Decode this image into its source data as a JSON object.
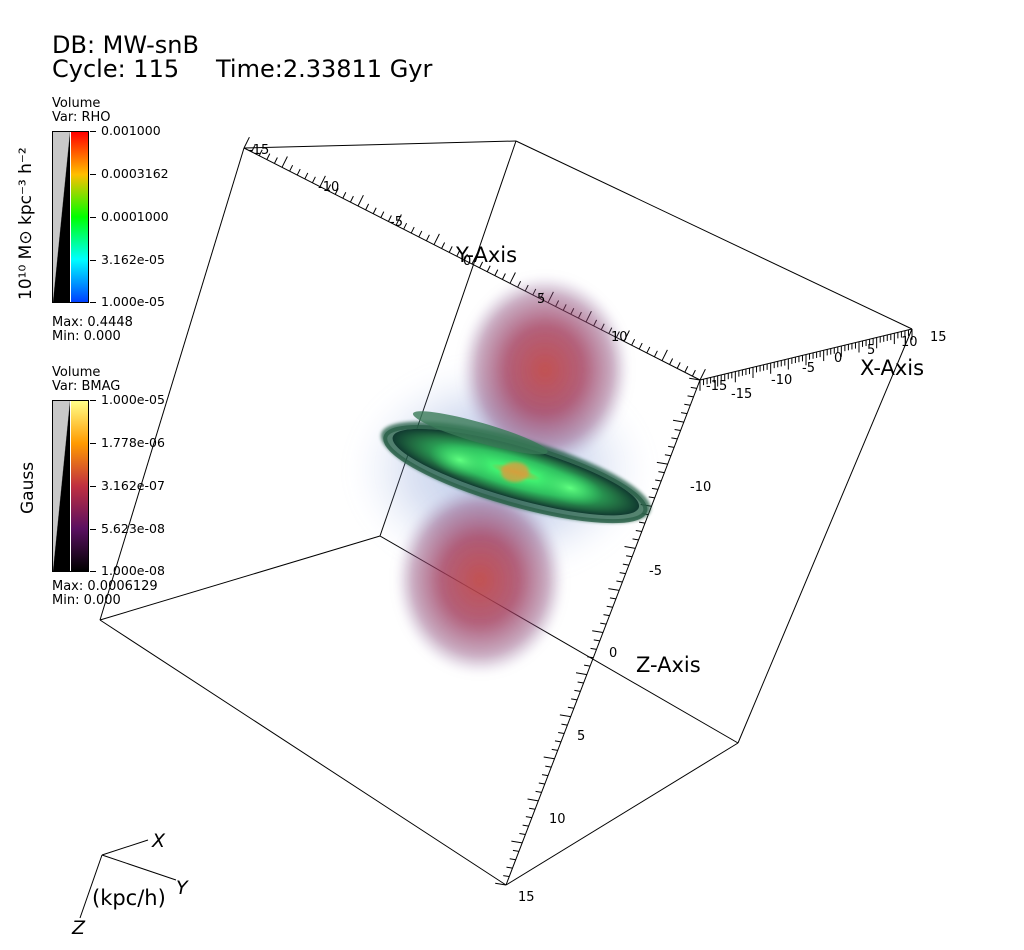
{
  "header": {
    "db": "DB: MW-snB",
    "cycle": "Cycle: 115",
    "time": "Time:2.33811 Gyr"
  },
  "legend_rho": {
    "kind": "Volume",
    "var": "Var: RHO",
    "units": "10¹⁰ M⊙ kpc⁻³ h⁻²",
    "ticks": [
      "0.001000",
      "0.0003162",
      "0.0001000",
      "3.162e-05",
      "1.000e-05"
    ],
    "max": "Max:  0.4448",
    "min": "Min:  0.000",
    "colors": [
      "#ff0000",
      "#ffbf00",
      "#00ff00",
      "#00ffff",
      "#0040ff"
    ]
  },
  "legend_bmag": {
    "kind": "Volume",
    "var": "Var: BMAG",
    "units": "Gauss",
    "ticks": [
      "1.000e-05",
      "1.778e-06",
      "3.162e-07",
      "5.623e-08",
      "1.000e-08"
    ],
    "max": "Max:  0.0006129",
    "min": "Min:  0.000",
    "colors": [
      "#ffff88",
      "#ff9a00",
      "#c03040",
      "#5a1060",
      "#000000"
    ]
  },
  "axes": {
    "x_title": "X-Axis",
    "y_title": "Y-Axis",
    "z_title": "Z-Axis",
    "y_ticks": [
      "-15",
      "-10",
      "-5",
      "0",
      "5",
      "10"
    ],
    "x_ticks": [
      "-15",
      "-10",
      "-5",
      "0",
      "5",
      "10",
      "15"
    ],
    "z_ticks_right": [
      "-10",
      "-5",
      "0"
    ],
    "z_ticks_front": [
      "5",
      "10",
      "15"
    ],
    "x_extra_label": "-15"
  },
  "triad": {
    "x": "X",
    "y": "Y",
    "z": "Z",
    "units": "(kpc/h)"
  },
  "colors": {
    "disk_green": "#30e060",
    "lobe_red": "#a03850",
    "halo_blue": "#5070c0"
  }
}
